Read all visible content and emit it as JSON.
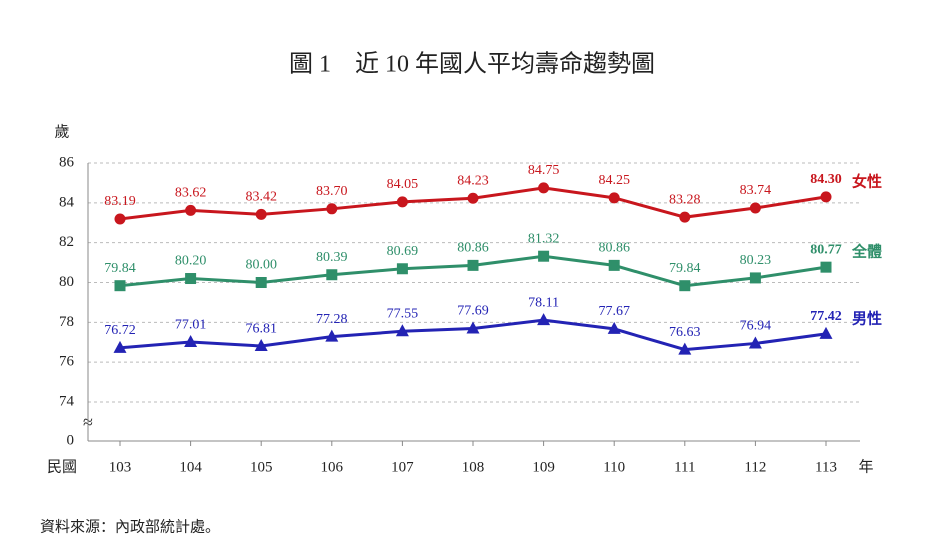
{
  "chart_data": {
    "type": "line",
    "title": "圖 1　近 10 年國人平均壽命趨勢圖",
    "y_label": "歲",
    "x_label_prefix": "民國",
    "x_label_suffix": "年",
    "source": "資料來源：內政部統計處。",
    "categories": [
      "103",
      "104",
      "105",
      "106",
      "107",
      "108",
      "109",
      "110",
      "111",
      "112",
      "113"
    ],
    "series": [
      {
        "name": "女性",
        "color": "#c8161d",
        "marker": "circle",
        "values": [
          83.19,
          83.62,
          83.42,
          83.7,
          84.05,
          84.23,
          84.75,
          84.25,
          83.28,
          83.74,
          84.3
        ],
        "value_labels": [
          "83.19",
          "83.62",
          "83.42",
          "83.70",
          "84.05",
          "84.23",
          "84.75",
          "84.25",
          "83.28",
          "83.74",
          "84.30"
        ]
      },
      {
        "name": "全體",
        "color": "#2f8f6a",
        "marker": "square",
        "values": [
          79.84,
          80.2,
          80.0,
          80.39,
          80.69,
          80.86,
          81.32,
          80.86,
          79.84,
          80.23,
          80.77
        ],
        "value_labels": [
          "79.84",
          "80.20",
          "80.00",
          "80.39",
          "80.69",
          "80.86",
          "81.32",
          "80.86",
          "79.84",
          "80.23",
          "80.77"
        ]
      },
      {
        "name": "男性",
        "color": "#2323b4",
        "marker": "triangle",
        "values": [
          76.72,
          77.01,
          76.81,
          77.28,
          77.55,
          77.69,
          78.11,
          77.67,
          76.63,
          76.94,
          77.42
        ],
        "value_labels": [
          "76.72",
          "77.01",
          "76.81",
          "77.28",
          "77.55",
          "77.69",
          "78.11",
          "77.67",
          "76.63",
          "76.94",
          "77.42"
        ]
      }
    ],
    "ylim": [
      0,
      86
    ],
    "axis_break": [
      0,
      74
    ],
    "yticks": [
      0,
      74,
      76,
      78,
      80,
      82,
      84,
      86
    ],
    "grid": true
  }
}
